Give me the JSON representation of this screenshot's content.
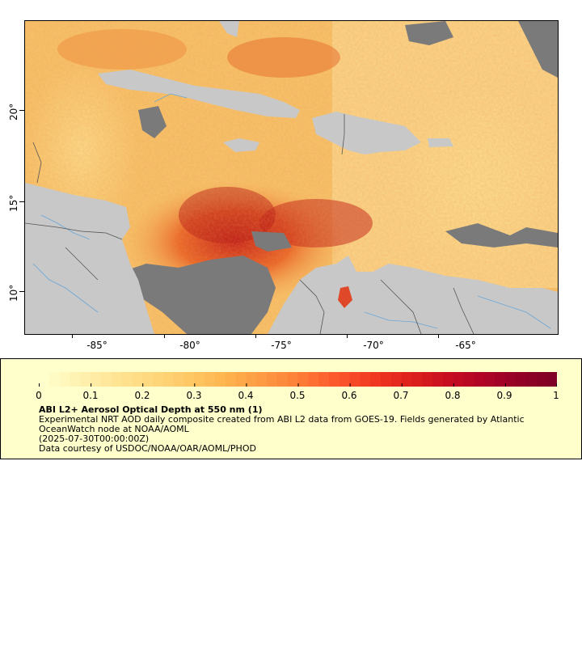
{
  "map": {
    "lat_labels": [
      "20°",
      "15°",
      "10°"
    ],
    "lon_labels": [
      "-85°",
      "-80°",
      "-75°",
      "-70°",
      "-65°"
    ],
    "colors": {
      "land": "#c8c8c8",
      "missing": "#7a7a7a",
      "rivers": "#6aa6d6",
      "borders": "#555555",
      "aod_low": "#fee9a6",
      "aod_mid": "#f5a040",
      "aod_high": "#c0161e"
    }
  },
  "legend": {
    "colorbar_labels": [
      "0",
      "0.1",
      "0.2",
      "0.3",
      "0.4",
      "0.5",
      "0.6",
      "0.7",
      "0.8",
      "0.9",
      "1"
    ],
    "colorbar_colors": [
      "#ffffcc",
      "#fff1b0",
      "#ffe494",
      "#fed77c",
      "#fec865",
      "#feb44e",
      "#fd9a43",
      "#fd7f38",
      "#fc5a2d",
      "#f13a22",
      "#e0221c",
      "#ca1020",
      "#b20526",
      "#960026",
      "#800026"
    ],
    "title": "ABI L2+ Aerosol Optical Depth at 550 nm (1)",
    "description": "Experimental NRT AOD daily composite created from ABI L2 data from GOES-19. Fields generated by Atlantic OceanWatch node at NOAA/AOML",
    "date": "(2025-07-30T00:00:00Z)",
    "credit": "Data courtesy of USDOC/NOAA/OAR/AOML/PHOD"
  }
}
